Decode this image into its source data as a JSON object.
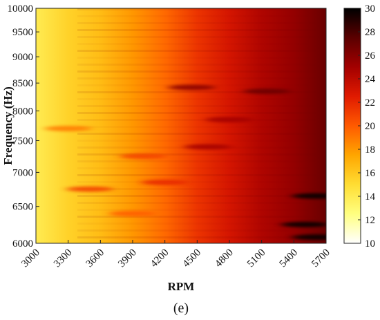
{
  "chart_data": {
    "type": "heatmap",
    "title": "",
    "xlabel": "RPM",
    "ylabel": "Frequency (Hz)",
    "panel_label": "(e)",
    "x_range": [
      3000,
      5700
    ],
    "y_range": [
      6000,
      10000
    ],
    "x_ticks": [
      "3000",
      "3300",
      "3600",
      "3900",
      "4200",
      "4500",
      "4800",
      "5100",
      "5400",
      "5700"
    ],
    "y_ticks": [
      "6000",
      "6500",
      "7000",
      "7500",
      "8000",
      "8500",
      "9000",
      "9500",
      "10000"
    ],
    "y_scale": "log",
    "colorbar": {
      "range": [
        10,
        30
      ],
      "ticks": [
        "10",
        "12",
        "14",
        "16",
        "18",
        "20",
        "22",
        "24",
        "26",
        "28",
        "30"
      ],
      "colormap": [
        "#ffffff",
        "#ffff80",
        "#ffdd33",
        "#ffa600",
        "#ff5a00",
        "#e01a00",
        "#a30000",
        "#5a0000",
        "#000000"
      ]
    },
    "levels_at_rpm": {
      "rpm": [
        3000,
        3300,
        3600,
        3900,
        4200,
        4500,
        4800,
        5100,
        5400,
        5700
      ],
      "values": [
        14,
        15.5,
        16.5,
        18,
        19.5,
        21.5,
        23,
        24.5,
        25.5,
        27
      ]
    },
    "hot_streaks": [
      {
        "rpm": 4450,
        "freq": 8420,
        "value": 26
      },
      {
        "rpm": 5150,
        "freq": 8350,
        "value": 27
      },
      {
        "rpm": 3500,
        "freq": 6750,
        "value": 21
      },
      {
        "rpm": 4200,
        "freq": 6850,
        "value": 22
      },
      {
        "rpm": 3300,
        "freq": 7700,
        "value": 19
      },
      {
        "rpm": 4000,
        "freq": 7250,
        "value": 21
      },
      {
        "rpm": 5600,
        "freq": 6650,
        "value": 30
      },
      {
        "rpm": 5500,
        "freq": 6250,
        "value": 30
      },
      {
        "rpm": 5600,
        "freq": 6080,
        "value": 30
      },
      {
        "rpm": 3900,
        "freq": 6400,
        "value": 20
      },
      {
        "rpm": 4800,
        "freq": 7850,
        "value": 25
      },
      {
        "rpm": 4600,
        "freq": 7400,
        "value": 25
      }
    ]
  }
}
